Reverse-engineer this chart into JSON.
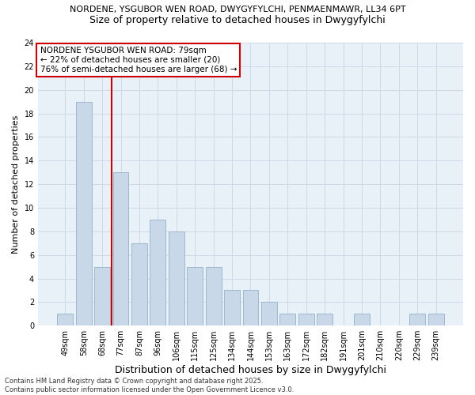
{
  "title1": "NORDENE, YSGUBOR WEN ROAD, DWYGYFYLCHI, PENMAENMAWR, LL34 6PT",
  "title2": "Size of property relative to detached houses in Dwygyfylchi",
  "xlabel": "Distribution of detached houses by size in Dwygyfylchi",
  "ylabel": "Number of detached properties",
  "categories": [
    "49sqm",
    "58sqm",
    "68sqm",
    "77sqm",
    "87sqm",
    "96sqm",
    "106sqm",
    "115sqm",
    "125sqm",
    "134sqm",
    "144sqm",
    "153sqm",
    "163sqm",
    "172sqm",
    "182sqm",
    "191sqm",
    "201sqm",
    "210sqm",
    "220sqm",
    "229sqm",
    "239sqm"
  ],
  "values": [
    1,
    19,
    5,
    13,
    7,
    9,
    8,
    5,
    5,
    3,
    3,
    2,
    1,
    1,
    1,
    0,
    1,
    0,
    0,
    1,
    1
  ],
  "bar_color": "#c8d8e8",
  "bar_edge_color": "#a0b8cc",
  "vline_index": 3,
  "vline_color": "#cc0000",
  "annotation_text": "NORDENE YSGUBOR WEN ROAD: 79sqm\n← 22% of detached houses are smaller (20)\n76% of semi-detached houses are larger (68) →",
  "annotation_box_color": "#cc0000",
  "ylim": [
    0,
    24
  ],
  "yticks": [
    0,
    2,
    4,
    6,
    8,
    10,
    12,
    14,
    16,
    18,
    20,
    22,
    24
  ],
  "grid_color": "#d0d8e8",
  "bg_color": "#e8f0f8",
  "footer": "Contains HM Land Registry data © Crown copyright and database right 2025.\nContains public sector information licensed under the Open Government Licence v3.0.",
  "title1_fontsize": 8,
  "title2_fontsize": 9,
  "ylabel_fontsize": 8,
  "xlabel_fontsize": 9,
  "tick_fontsize": 7,
  "annotation_fontsize": 7.5,
  "footer_fontsize": 6
}
